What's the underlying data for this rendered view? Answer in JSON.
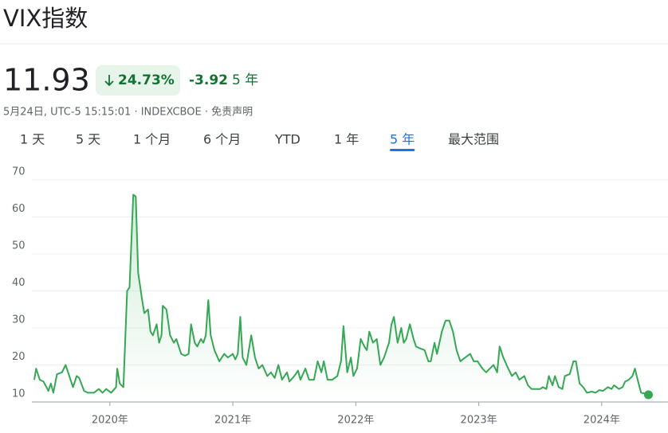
{
  "header": {
    "title": "VIX指数"
  },
  "quote": {
    "price": "11.93",
    "change_percent": "24.73%",
    "change": "-3.92",
    "period": "5 年",
    "timestamp": "5月24日, UTC-5 15:15:01 · INDEXCBOE · 免责声明"
  },
  "tabs": [
    "1 天",
    "5 天",
    "1 个月",
    "6 个月",
    "YTD",
    "1 年",
    "5 年",
    "最大范围"
  ],
  "active_tab": 6,
  "chart_data": {
    "type": "line",
    "xlim": [
      2019.385,
      2024.39
    ],
    "ylim": [
      10,
      70
    ],
    "xticks": [
      {
        "value": 2020,
        "label": "2020年"
      },
      {
        "value": 2021,
        "label": "2021年"
      },
      {
        "value": 2022,
        "label": "2022年"
      },
      {
        "value": 2023,
        "label": "2023年"
      },
      {
        "value": 2024,
        "label": "2024年"
      }
    ],
    "yticks": [
      10,
      20,
      30,
      40,
      50,
      60,
      70
    ],
    "grid": true,
    "x": [
      2019.385,
      2019.4,
      2019.43,
      2019.46,
      2019.5,
      2019.52,
      2019.54,
      2019.57,
      2019.61,
      2019.64,
      2019.68,
      2019.7,
      2019.73,
      2019.75,
      2019.79,
      2019.82,
      2019.87,
      2019.91,
      2019.94,
      2019.97,
      2020.01,
      2020.05,
      2020.06,
      2020.08,
      2020.11,
      2020.14,
      2020.16,
      2020.19,
      2020.21,
      2020.23,
      2020.26,
      2020.28,
      2020.31,
      2020.33,
      2020.35,
      2020.38,
      2020.4,
      2020.42,
      2020.43,
      2020.46,
      2020.49,
      2020.52,
      2020.54,
      2020.58,
      2020.61,
      2020.64,
      2020.66,
      2020.69,
      2020.71,
      2020.74,
      2020.76,
      2020.78,
      2020.8,
      2020.82,
      2020.85,
      2020.89,
      2020.93,
      2020.96,
      2021.0,
      2021.02,
      2021.04,
      2021.06,
      2021.08,
      2021.11,
      2021.15,
      2021.18,
      2021.21,
      2021.24,
      2021.28,
      2021.31,
      2021.34,
      2021.37,
      2021.4,
      2021.44,
      2021.46,
      2021.5,
      2021.53,
      2021.55,
      2021.59,
      2021.62,
      2021.66,
      2021.69,
      2021.72,
      2021.74,
      2021.77,
      2021.81,
      2021.85,
      2021.88,
      2021.9,
      2021.93,
      2021.96,
      2021.98,
      2022.01,
      2022.04,
      2022.07,
      2022.09,
      2022.11,
      2022.14,
      2022.17,
      2022.2,
      2022.23,
      2022.27,
      2022.29,
      2022.31,
      2022.34,
      2022.37,
      2022.39,
      2022.41,
      2022.44,
      2022.47,
      2022.49,
      2022.52,
      2022.56,
      2022.59,
      2022.61,
      2022.64,
      2022.66,
      2022.7,
      2022.73,
      2022.76,
      2022.79,
      2022.82,
      2022.85,
      2022.89,
      2022.93,
      2022.96,
      2022.99,
      2023.03,
      2023.06,
      2023.09,
      2023.12,
      2023.15,
      2023.17,
      2023.2,
      2023.24,
      2023.27,
      2023.3,
      2023.33,
      2023.37,
      2023.4,
      2023.43,
      2023.46,
      2023.5,
      2023.52,
      2023.55,
      2023.57,
      2023.6,
      2023.62,
      2023.65,
      2023.68,
      2023.7,
      2023.74,
      2023.77,
      2023.79,
      2023.82,
      2023.85,
      2023.88,
      2023.92,
      2023.95,
      2023.98,
      2024.01,
      2024.05,
      2024.08,
      2024.1,
      2024.14,
      2024.17,
      2024.19,
      2024.22,
      2024.25,
      2024.27,
      2024.3,
      2024.32,
      2024.35,
      2024.38
    ],
    "series": [
      {
        "color": "#34a853",
        "values": [
          16,
          19,
          16,
          15.5,
          13,
          15,
          12.5,
          17.5,
          18,
          20,
          16,
          14,
          17,
          16.5,
          13,
          12.5,
          12.5,
          13.5,
          12.5,
          13.5,
          12.5,
          14,
          19,
          15,
          14,
          40,
          41,
          66,
          65.5,
          45,
          38,
          34,
          35,
          29,
          28,
          31,
          26,
          28,
          36,
          35,
          28,
          26,
          27,
          23,
          22.5,
          23,
          31,
          26,
          25,
          27,
          26,
          28,
          37.5,
          28,
          24,
          21,
          23,
          22,
          23,
          21.5,
          23,
          33,
          22,
          20,
          28,
          22,
          19,
          20,
          17,
          18,
          16.5,
          20,
          16,
          18,
          15.5,
          17,
          18.5,
          16,
          19,
          16,
          16,
          21,
          18,
          21,
          16,
          16,
          17,
          21,
          30.5,
          18,
          22,
          17,
          19,
          27,
          25,
          24,
          29,
          26,
          27,
          20,
          22,
          26,
          31,
          33,
          26,
          30,
          26,
          27,
          31,
          27,
          25,
          24.5,
          24,
          21,
          21,
          26,
          23,
          29,
          32,
          32,
          29,
          24,
          21,
          22,
          23,
          21,
          21,
          19,
          18,
          19,
          20,
          18,
          25,
          22,
          19,
          17,
          18,
          16,
          17,
          14.5,
          13.5,
          13.5,
          13.5,
          14,
          13.5,
          17,
          14.5,
          17,
          14,
          13.5,
          17,
          17.5,
          21,
          21,
          15,
          14,
          12.5,
          12.8,
          12.5,
          13.2,
          13,
          14,
          13.5,
          14.5,
          13.5,
          14,
          15.5,
          16,
          17,
          19,
          15,
          12.5,
          12.3,
          11.93
        ]
      }
    ]
  }
}
